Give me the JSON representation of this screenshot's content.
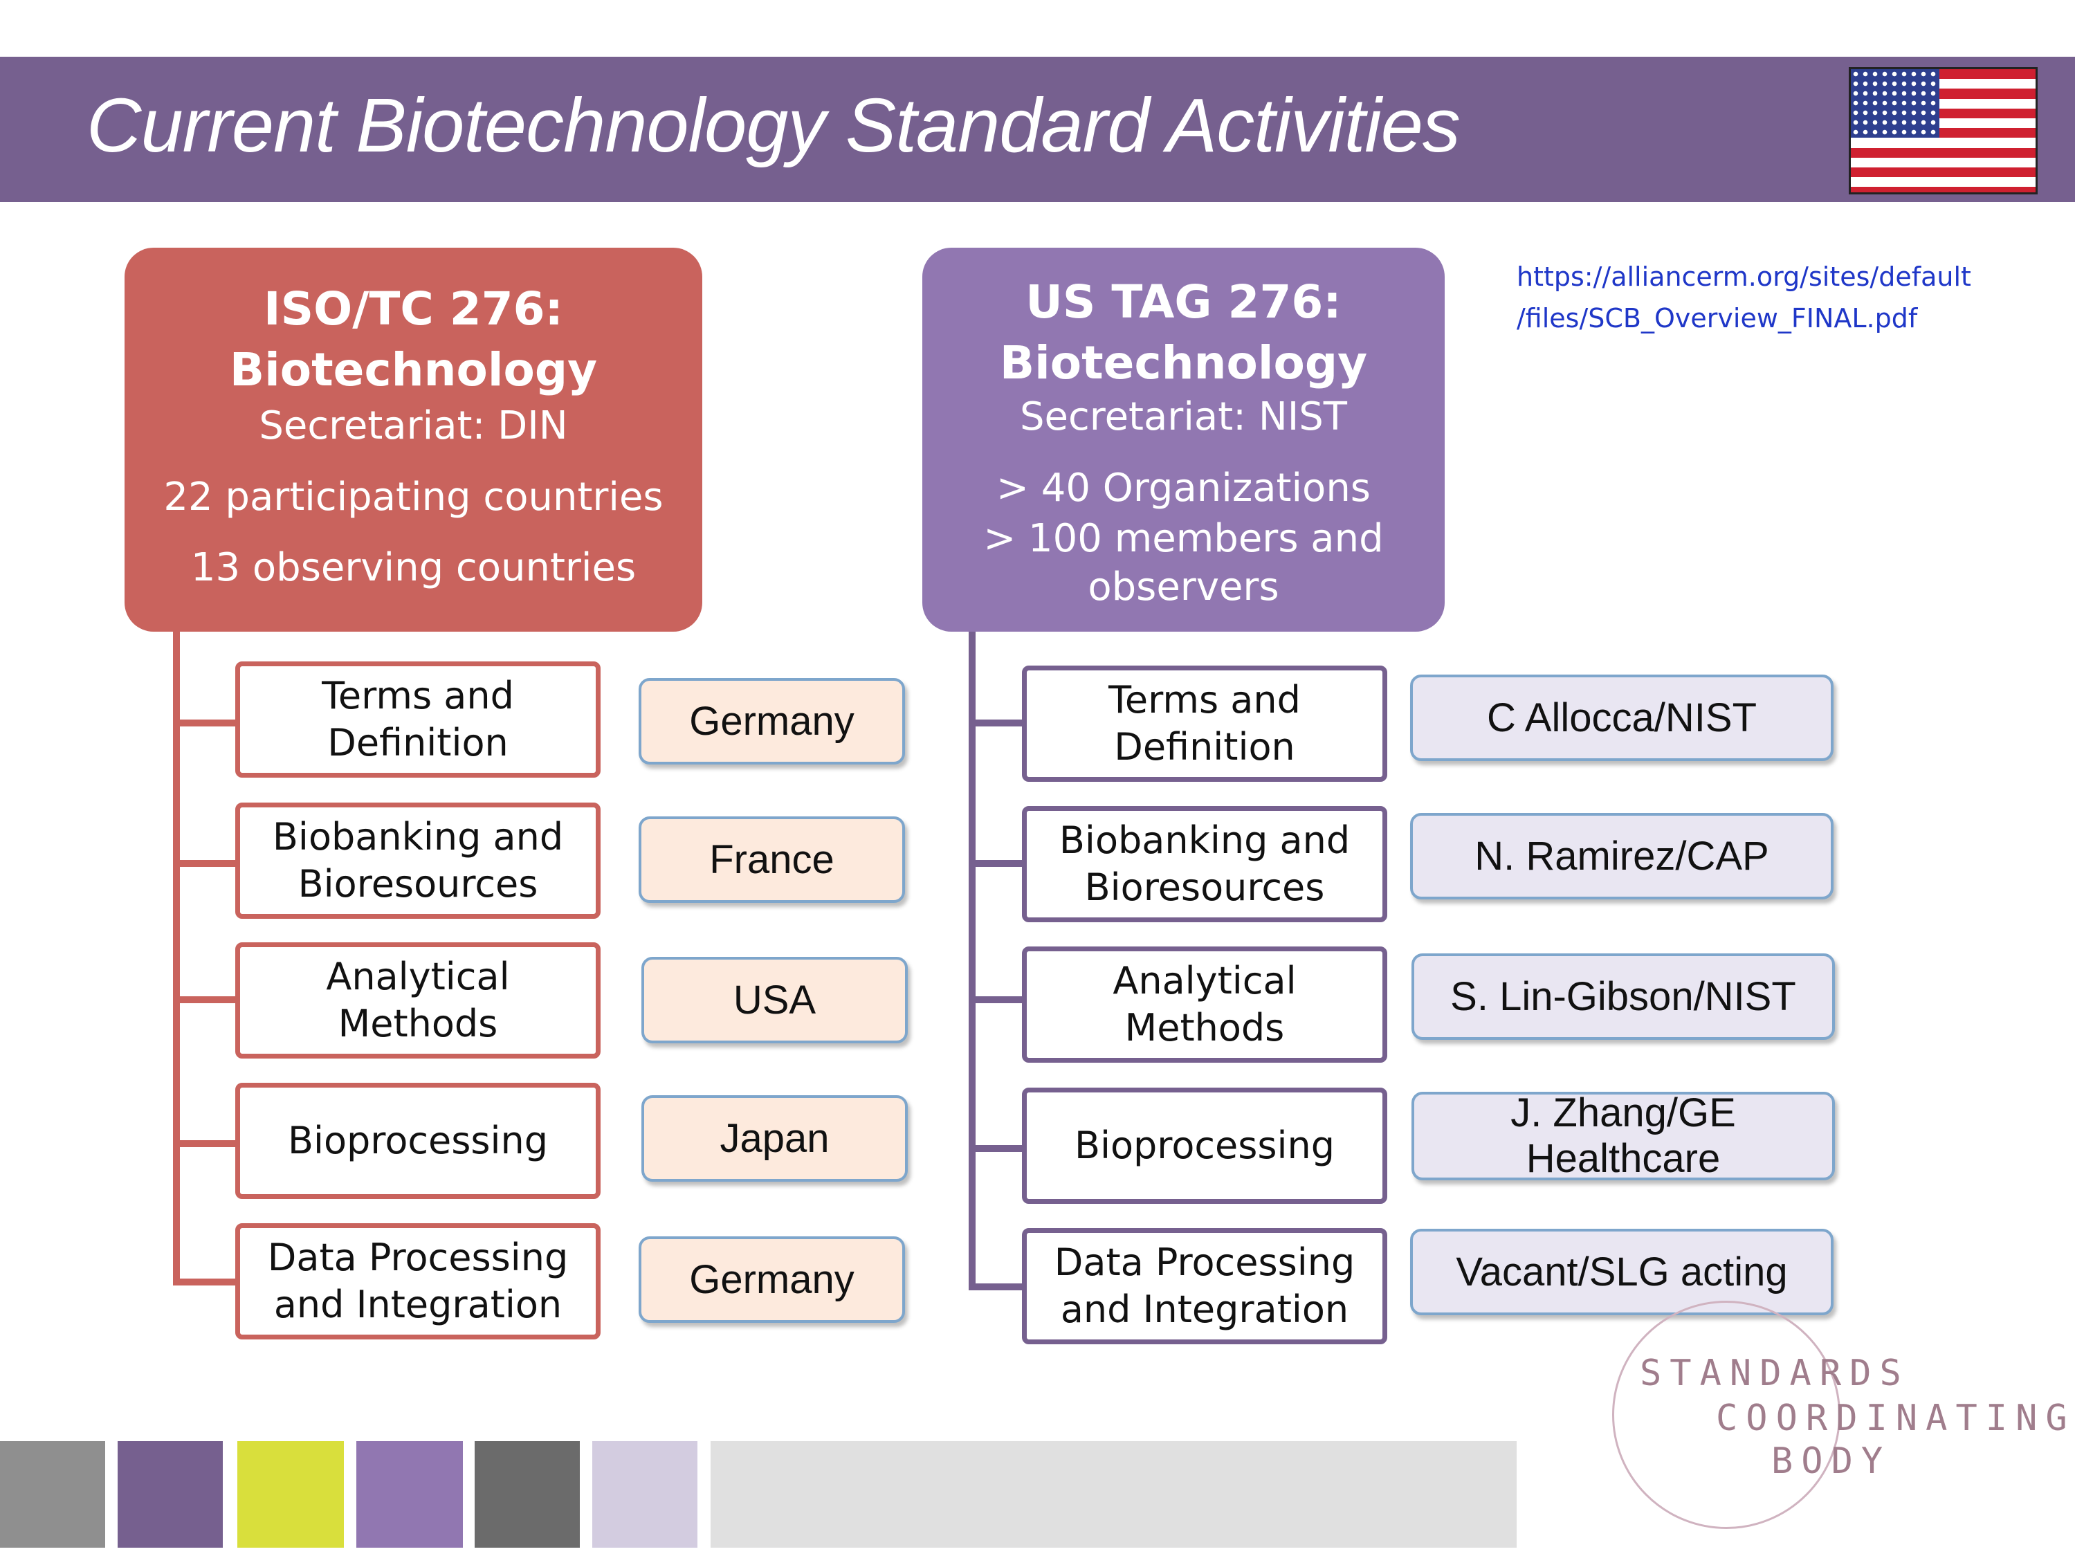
{
  "title": "Current Biotechnology Standard Activities",
  "url": {
    "line1": "https://alliancerm.org/sites/default",
    "line2": "/files/SCB_Overview_FINAL.pdf"
  },
  "iso": {
    "name": "ISO/TC 276:",
    "subject": "Biotechnology",
    "secretariat": "Secretariat: DIN",
    "stat1": "22 participating countries",
    "stat2": "13 observing countries",
    "color": "#c9635d"
  },
  "us": {
    "name": "US TAG 276:",
    "subject": "Biotechnology",
    "secretariat": "Secretariat: NIST",
    "stat1": "> 40 Organizations",
    "stat2": "> 100 members and",
    "stat3": "observers",
    "color": "#9177b1"
  },
  "working_groups": [
    {
      "line1": "Terms and",
      "line2": "Definition"
    },
    {
      "line1": "Biobanking and",
      "line2": "Bioresources"
    },
    {
      "line1": "Analytical",
      "line2": "Methods"
    },
    {
      "line1": "Bioprocessing",
      "line2": ""
    },
    {
      "line1": "Data Processing",
      "line2": "and Integration"
    }
  ],
  "iso_leads": [
    {
      "line1": "Germany",
      "line2": ""
    },
    {
      "line1": "France",
      "line2": ""
    },
    {
      "line1": "USA",
      "line2": ""
    },
    {
      "line1": "Japan",
      "line2": ""
    },
    {
      "line1": "Germany",
      "line2": ""
    }
  ],
  "us_leads": [
    {
      "line1": "C Allocca/NIST",
      "line2": ""
    },
    {
      "line1": "N. Ramirez/CAP",
      "line2": ""
    },
    {
      "line1": "S. Lin-Gibson/NIST",
      "line2": ""
    },
    {
      "line1": "J. Zhang/GE",
      "line2": "Healthcare"
    },
    {
      "line1": "Vacant/SLG acting",
      "line2": ""
    }
  ],
  "logo": {
    "line1": "STANDARDS",
    "line2": "COORDINATING",
    "line3": "BODY"
  },
  "palette": [
    "#8f8f8f",
    "#76608f",
    "#d9df3c",
    "#9177b1",
    "#6b6b6b",
    "#d3cce0",
    "#e0e0e0"
  ]
}
